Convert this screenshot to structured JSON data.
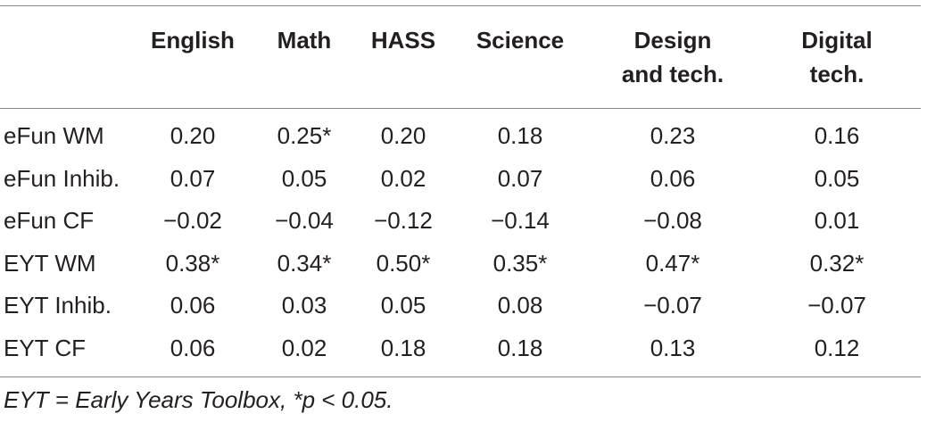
{
  "table": {
    "headers": [
      {
        "line1": "",
        "line2": ""
      },
      {
        "line1": "English",
        "line2": ""
      },
      {
        "line1": "Math",
        "line2": ""
      },
      {
        "line1": "HASS",
        "line2": ""
      },
      {
        "line1": "Science",
        "line2": ""
      },
      {
        "line1": "Design",
        "line2": "and tech."
      },
      {
        "line1": "Digital",
        "line2": "tech."
      }
    ],
    "rows": [
      {
        "label": "eFun WM",
        "cells": [
          "0.20",
          "0.25*",
          "0.20",
          "0.18",
          "0.23",
          "0.16"
        ]
      },
      {
        "label": "eFun Inhib.",
        "cells": [
          "0.07",
          "0.05",
          "0.02",
          "0.07",
          "0.06",
          "0.05"
        ]
      },
      {
        "label": "eFun CF",
        "cells": [
          "−0.02",
          "−0.04",
          "−0.12",
          "−0.14",
          "−0.08",
          "0.01"
        ]
      },
      {
        "label": "EYT WM",
        "cells": [
          "0.38*",
          "0.34*",
          "0.50*",
          "0.35*",
          "0.47*",
          "0.32*"
        ]
      },
      {
        "label": "EYT Inhib.",
        "cells": [
          "0.06",
          "0.03",
          "0.05",
          "0.08",
          "−0.07",
          "−0.07"
        ]
      },
      {
        "label": "EYT CF",
        "cells": [
          "0.06",
          "0.02",
          "0.18",
          "0.18",
          "0.13",
          "0.12"
        ]
      }
    ]
  },
  "footnote": "EYT = Early Years Toolbox, *p < 0.05."
}
